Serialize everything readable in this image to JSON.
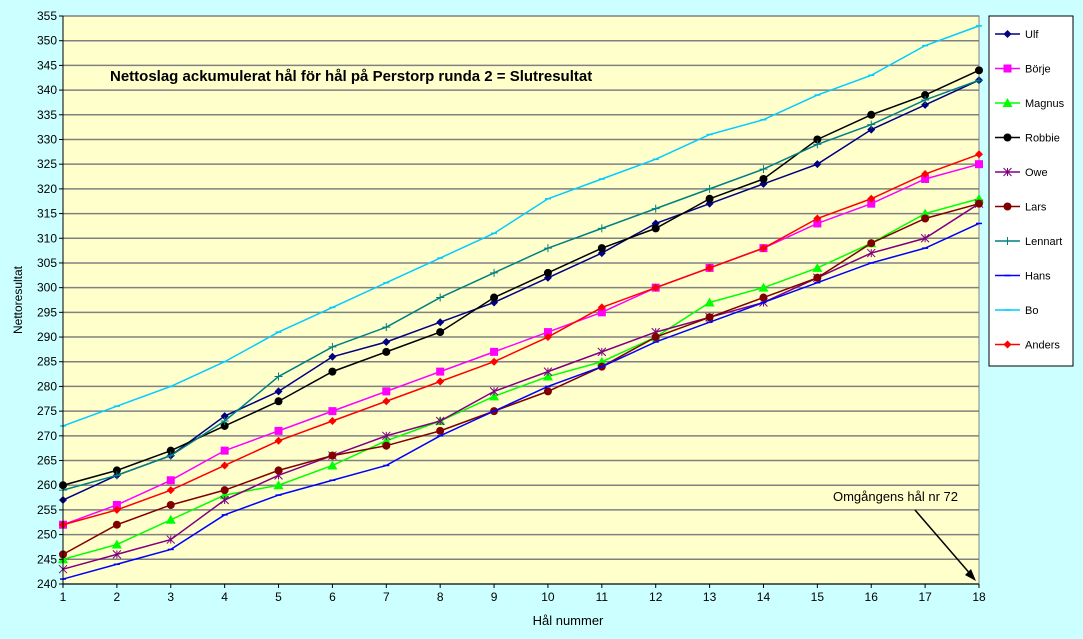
{
  "chart_data": {
    "type": "line",
    "title": "Nettoslag ackumulerat hål för hål på Perstorp runda 2 = Slutresultat",
    "xlabel": "Hål nummer",
    "ylabel": "Nettoresultat",
    "x": [
      1,
      2,
      3,
      4,
      5,
      6,
      7,
      8,
      9,
      10,
      11,
      12,
      13,
      14,
      15,
      16,
      17,
      18
    ],
    "ylim": [
      240,
      355
    ],
    "ytick_step": 5,
    "grid": true,
    "legend_placement": "right",
    "annotation": "Omgångens hål nr 72",
    "series": [
      {
        "name": "Ulf",
        "color": "#000080",
        "marker": "diamond",
        "values": [
          257,
          262,
          266,
          274,
          279,
          286,
          289,
          293,
          297,
          302,
          307,
          313,
          317,
          321,
          325,
          332,
          337,
          342
        ]
      },
      {
        "name": "Börje",
        "color": "#ff00ff",
        "marker": "square",
        "values": [
          252,
          256,
          261,
          267,
          271,
          275,
          279,
          283,
          287,
          291,
          295,
          300,
          304,
          308,
          313,
          317,
          322,
          325
        ]
      },
      {
        "name": "Magnus",
        "color": "#00ff00",
        "marker": "triangle",
        "values": [
          245,
          248,
          253,
          258,
          260,
          264,
          269,
          273,
          278,
          282,
          285,
          290,
          297,
          300,
          304,
          309,
          315,
          318
        ]
      },
      {
        "name": "Robbie",
        "color": "#000000",
        "marker": "circle",
        "values": [
          260,
          263,
          267,
          272,
          277,
          283,
          287,
          291,
          298,
          303,
          308,
          312,
          318,
          322,
          330,
          335,
          339,
          344
        ]
      },
      {
        "name": "Owe",
        "color": "#800080",
        "marker": "star",
        "values": [
          243,
          246,
          249,
          257,
          262,
          266,
          270,
          273,
          279,
          283,
          287,
          291,
          294,
          297,
          302,
          307,
          310,
          317
        ]
      },
      {
        "name": "Lars",
        "color": "#800000",
        "marker": "circle",
        "values": [
          246,
          252,
          256,
          259,
          263,
          266,
          268,
          271,
          275,
          279,
          284,
          290,
          294,
          298,
          302,
          309,
          314,
          317
        ]
      },
      {
        "name": "Lennart",
        "color": "#008080",
        "marker": "plus",
        "values": [
          259,
          262,
          266,
          273,
          282,
          288,
          292,
          298,
          303,
          308,
          312,
          316,
          320,
          324,
          329,
          333,
          338,
          342
        ]
      },
      {
        "name": "Hans",
        "color": "#0000ff",
        "marker": "dash",
        "values": [
          241,
          244,
          247,
          254,
          258,
          261,
          264,
          270,
          275,
          280,
          284,
          289,
          293,
          297,
          301,
          305,
          308,
          313
        ]
      },
      {
        "name": "Bo",
        "color": "#00ccff",
        "marker": "dash",
        "values": [
          272,
          276,
          280,
          285,
          291,
          296,
          301,
          306,
          311,
          318,
          322,
          326,
          331,
          334,
          339,
          343,
          349,
          353
        ]
      },
      {
        "name": "Anders",
        "color": "#ff0000",
        "marker": "diamond",
        "values": [
          252,
          255,
          259,
          264,
          269,
          273,
          277,
          281,
          285,
          290,
          296,
          300,
          304,
          308,
          314,
          318,
          323,
          327
        ]
      }
    ]
  }
}
